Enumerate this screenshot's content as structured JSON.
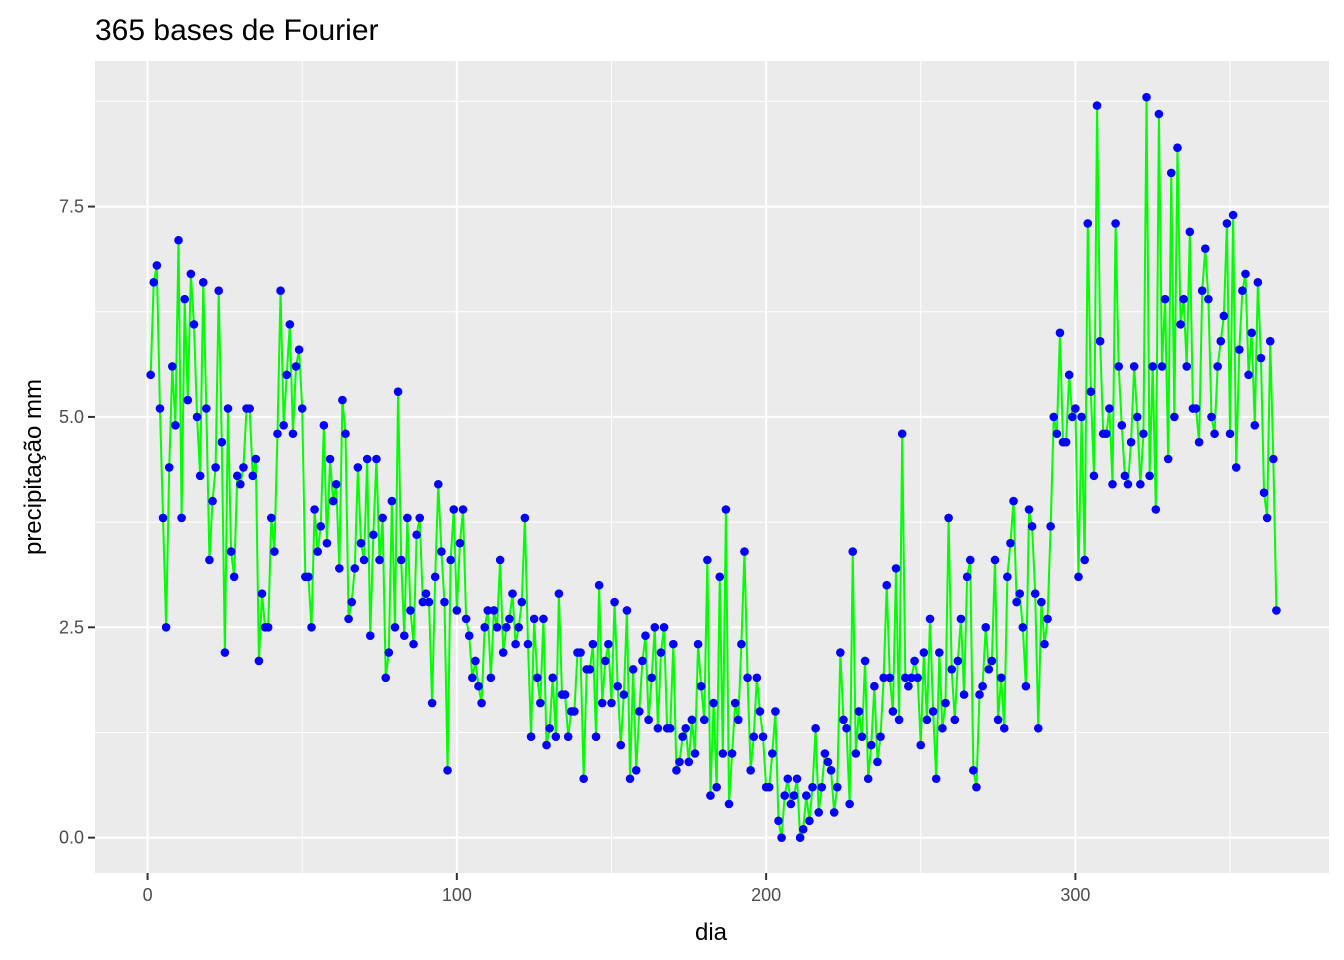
{
  "chart_data": {
    "type": "line",
    "title": "365 bases de Fourier",
    "xlabel": "dia",
    "ylabel": "precipitação mm",
    "xlim": [
      -17,
      382
    ],
    "ylim": [
      -0.42,
      9.23
    ],
    "x_ticks": [
      0,
      100,
      200,
      300
    ],
    "y_ticks": [
      0.0,
      2.5,
      5.0,
      7.5
    ],
    "x_tick_labels": [
      "0",
      "100",
      "200",
      "300"
    ],
    "y_tick_labels": [
      "0.0",
      "2.5",
      "5.0",
      "7.5"
    ],
    "grid": true,
    "legend": "none",
    "colors": {
      "panel": "#ebebeb",
      "grid_major": "#ffffff",
      "line": "#00ff00",
      "points": "#0000ff",
      "tick_text": "#4d4d4d",
      "tick_marks": "#333333"
    },
    "series": [
      {
        "style": "points",
        "x_start": 1,
        "x_step": 1,
        "values": [
          5.5,
          6.6,
          6.8,
          5.1,
          3.8,
          2.5,
          4.4,
          5.6,
          4.9,
          7.1,
          3.8,
          6.4,
          5.2,
          6.7,
          6.1,
          5.0,
          4.3,
          6.6,
          5.1,
          3.3,
          4.0,
          4.4,
          6.5,
          4.7,
          2.2,
          5.1,
          3.4,
          3.1,
          4.3,
          4.2,
          4.4,
          5.1,
          5.1,
          4.3,
          4.5,
          2.1,
          2.9,
          2.5,
          2.5,
          3.8,
          3.4,
          4.8,
          6.5,
          4.9,
          5.5,
          6.1,
          4.8,
          5.6,
          5.8,
          5.1,
          3.1,
          3.1,
          2.5,
          3.9,
          3.4,
          3.7,
          4.9,
          3.5,
          4.5,
          4.0,
          4.2,
          3.2,
          5.2,
          4.8,
          2.6,
          2.8,
          3.2,
          4.4,
          3.5,
          3.3,
          4.5,
          2.4,
          3.6,
          4.5,
          3.3,
          3.8,
          1.9,
          2.2,
          4.0,
          2.5,
          5.3,
          3.3,
          2.4,
          3.8,
          2.7,
          2.3,
          3.6,
          3.8,
          2.8,
          2.9,
          2.8,
          1.6,
          3.1,
          4.2,
          3.4,
          2.8,
          0.8,
          3.3,
          3.9,
          2.7,
          3.5,
          3.9,
          2.6,
          2.4,
          1.9,
          2.1,
          1.8,
          1.6,
          2.5,
          2.7,
          1.9,
          2.7,
          2.5,
          3.3,
          2.2,
          2.5,
          2.6,
          2.9,
          2.3,
          2.5,
          2.8,
          3.8,
          2.3,
          1.2,
          2.6,
          1.9,
          1.6,
          2.6,
          1.1,
          1.3,
          1.9,
          1.2,
          2.9,
          1.7,
          1.7,
          1.2,
          1.5,
          1.5,
          2.2,
          2.2,
          0.7,
          2.0,
          2.0,
          2.3,
          1.2,
          3.0,
          1.6,
          2.1,
          2.3,
          1.6,
          2.8,
          1.8,
          1.1,
          1.7,
          2.7,
          0.7,
          2.0,
          0.8,
          1.5,
          2.1,
          2.4,
          1.4,
          1.9,
          2.5,
          1.3,
          2.2,
          2.5,
          1.3,
          1.3,
          2.3,
          0.8,
          0.9,
          1.2,
          1.3,
          0.9,
          1.4,
          1.0,
          2.3,
          1.8,
          1.4,
          3.3,
          0.5,
          1.6,
          0.6,
          3.1,
          1.0,
          3.9,
          0.4,
          1.0,
          1.6,
          1.4,
          2.3,
          3.4,
          1.9,
          0.8,
          1.2,
          1.9,
          1.5,
          1.2,
          0.6,
          0.6,
          1.0,
          1.5,
          0.2,
          0.0,
          0.5,
          0.7,
          0.4,
          0.5,
          0.7,
          0.0,
          0.1,
          0.5,
          0.2,
          0.6,
          1.3,
          0.3,
          0.6,
          1.0,
          0.9,
          0.8,
          0.3,
          0.6,
          2.2,
          1.4,
          1.3,
          0.4,
          3.4,
          1.0,
          1.5,
          1.2,
          2.1,
          0.7,
          1.1,
          1.8,
          0.9,
          1.2,
          1.9,
          3.0,
          1.9,
          1.5,
          3.2,
          1.4,
          4.8,
          1.9,
          1.8,
          1.9,
          2.1,
          1.9,
          1.1,
          2.2,
          1.4,
          2.6,
          1.5,
          0.7,
          2.2,
          1.3,
          1.6,
          3.8,
          2.0,
          1.4,
          2.1,
          2.6,
          1.7,
          3.1,
          3.3,
          0.8,
          0.6,
          1.7,
          1.8,
          2.5,
          2.0,
          2.1,
          3.3,
          1.4,
          1.9,
          1.3,
          3.1,
          3.5,
          4.0,
          2.8,
          2.9,
          2.5,
          1.8,
          3.9,
          3.7,
          2.9,
          1.3,
          2.8,
          2.3,
          2.6,
          3.7,
          5.0,
          4.8,
          6.0,
          4.7,
          4.7,
          5.5,
          5.0,
          5.1,
          3.1,
          5.0,
          3.3,
          7.3,
          5.3,
          4.3,
          8.7,
          5.9,
          4.8,
          4.8,
          5.1,
          4.2,
          7.3,
          5.6,
          4.9,
          4.3,
          4.2,
          4.7,
          5.6,
          5.0,
          4.2,
          4.8,
          8.8,
          4.3,
          5.6,
          3.9,
          8.6,
          5.6,
          6.4,
          4.5,
          7.9,
          5.0,
          8.2,
          6.1,
          6.4,
          5.6,
          7.2,
          5.1,
          5.1,
          4.7,
          6.5,
          7.0,
          6.4,
          5.0,
          4.8,
          5.6,
          5.9,
          6.2,
          7.3,
          4.8,
          7.4,
          4.4,
          5.8,
          6.5,
          6.7,
          5.5,
          6.0,
          4.9,
          6.6,
          5.7,
          4.1,
          3.8,
          5.9,
          4.5,
          2.7
        ]
      }
    ]
  }
}
